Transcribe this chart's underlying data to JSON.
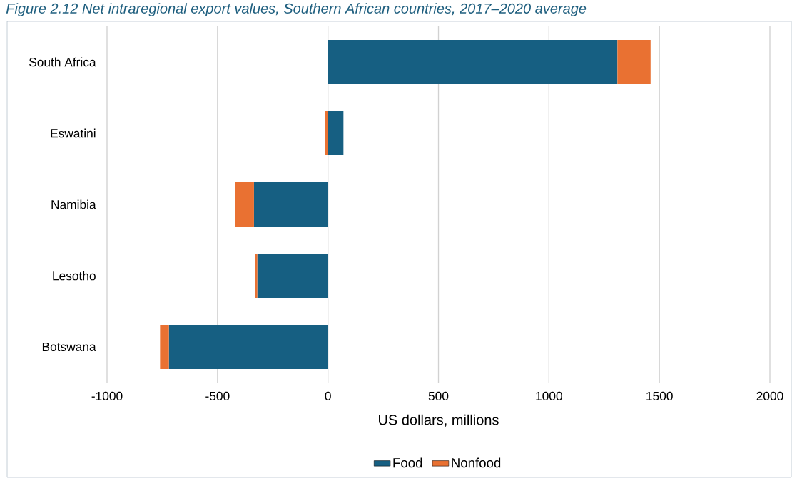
{
  "chart_data": {
    "type": "bar",
    "orientation": "horizontal",
    "stacked": true,
    "title": "Figure 2.12 Net intraregional export values, Southern African countries, 2017–2020 average",
    "xlabel": "US dollars, millions",
    "categories": [
      "South Africa",
      "Eswatini",
      "Namibia",
      "Lesotho",
      "Botswana"
    ],
    "series": [
      {
        "name": "Food",
        "color": "#165f82",
        "values": [
          1310,
          70,
          -335,
          -320,
          -720
        ]
      },
      {
        "name": "Nonfood",
        "color": "#e97132",
        "values": [
          150,
          -15,
          -85,
          -10,
          -40
        ]
      }
    ],
    "xlim": [
      -1000,
      2000
    ],
    "xticks": [
      -1000,
      -500,
      0,
      500,
      1000,
      1500,
      2000
    ],
    "grid": "x",
    "legend": "bottom"
  }
}
